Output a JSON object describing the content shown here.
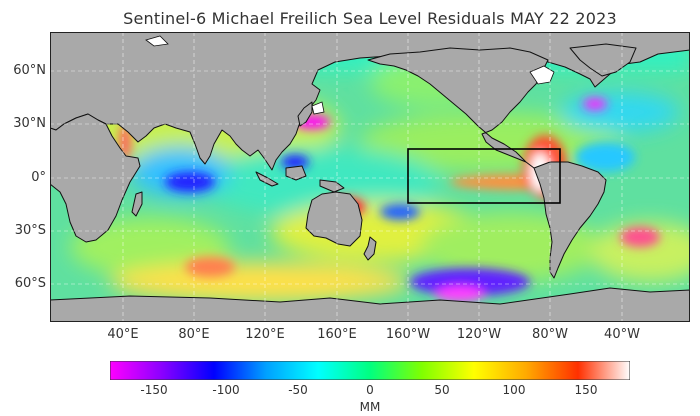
{
  "title": "Sentinel-6 Michael Freilich Sea Level Residuals MAY 22 2023",
  "map": {
    "projection": "equirectangular",
    "center_longitude": "180",
    "lat_labels": [
      "60°N",
      "30°N",
      "0°",
      "30°S",
      "60°S"
    ],
    "lon_labels": [
      "40°E",
      "80°E",
      "120°E",
      "160°E",
      "160°W",
      "120°W",
      "80°W",
      "40°W"
    ],
    "colors": {
      "land": "#a9a9a9",
      "ice": "#ffffff",
      "box": "#000000",
      "coast": "#111111"
    },
    "highlight_region": {
      "shape": "rectangle",
      "label": ""
    }
  },
  "colorbar": {
    "ticks": [
      "-150",
      "-100",
      "-50",
      "0",
      "50",
      "100",
      "150"
    ],
    "range": [
      -180,
      180
    ],
    "unit": "MM",
    "colors": [
      "#ff00ff",
      "#8a00ff",
      "#0000ff",
      "#00a0ff",
      "#00ffff",
      "#00ff80",
      "#80ff00",
      "#ffff00",
      "#ffaa00",
      "#ff3000",
      "#ffffff"
    ]
  }
}
